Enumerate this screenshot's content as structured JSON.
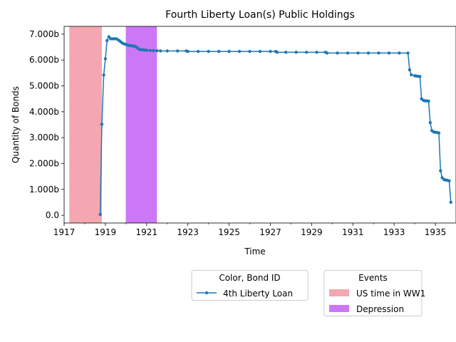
{
  "chart_data": {
    "type": "line",
    "title": "Fourth Liberty Loan(s) Public Holdings",
    "xlabel": "Time",
    "ylabel": "Quantity of Bonds",
    "xlim": [
      1917.0,
      1936.0
    ],
    "ylim": [
      -0.3,
      7.3
    ],
    "x_ticks": [
      1917,
      1919,
      1921,
      1923,
      1925,
      1927,
      1929,
      1931,
      1933,
      1935
    ],
    "x_tick_labels": [
      "1917",
      "1919",
      "1921",
      "1923",
      "1925",
      "1927",
      "1929",
      "1931",
      "1933",
      "1935"
    ],
    "y_ticks": [
      0,
      1,
      2,
      3,
      4,
      5,
      6,
      7
    ],
    "y_tick_labels": [
      "0.0",
      "1.000b",
      "2.000b",
      "3.000b",
      "4.000b",
      "5.000b",
      "6.000b",
      "7.000b"
    ],
    "series": [
      {
        "name": "4th Liberty Loan",
        "color": "#1f77b4",
        "marker": "dot",
        "points": [
          [
            1918.75,
            0.03
          ],
          [
            1918.83,
            3.52
          ],
          [
            1918.92,
            5.42
          ],
          [
            1919.0,
            6.05
          ],
          [
            1919.08,
            6.75
          ],
          [
            1919.17,
            6.9
          ],
          [
            1919.25,
            6.82
          ],
          [
            1919.33,
            6.82
          ],
          [
            1919.42,
            6.82
          ],
          [
            1919.5,
            6.82
          ],
          [
            1919.58,
            6.8
          ],
          [
            1919.67,
            6.75
          ],
          [
            1919.75,
            6.7
          ],
          [
            1919.83,
            6.65
          ],
          [
            1919.92,
            6.62
          ],
          [
            1920.0,
            6.6
          ],
          [
            1920.08,
            6.58
          ],
          [
            1920.17,
            6.56
          ],
          [
            1920.25,
            6.55
          ],
          [
            1920.33,
            6.54
          ],
          [
            1920.42,
            6.53
          ],
          [
            1920.5,
            6.5
          ],
          [
            1920.58,
            6.45
          ],
          [
            1920.67,
            6.4
          ],
          [
            1920.75,
            6.4
          ],
          [
            1920.83,
            6.39
          ],
          [
            1920.92,
            6.38
          ],
          [
            1921.0,
            6.38
          ],
          [
            1921.17,
            6.37
          ],
          [
            1921.33,
            6.36
          ],
          [
            1921.5,
            6.36
          ],
          [
            1921.67,
            6.35
          ],
          [
            1922.0,
            6.35
          ],
          [
            1922.5,
            6.35
          ],
          [
            1922.92,
            6.35
          ],
          [
            1923.0,
            6.33
          ],
          [
            1923.5,
            6.33
          ],
          [
            1924.0,
            6.33
          ],
          [
            1924.5,
            6.33
          ],
          [
            1925.0,
            6.33
          ],
          [
            1925.5,
            6.33
          ],
          [
            1926.0,
            6.33
          ],
          [
            1926.5,
            6.33
          ],
          [
            1927.0,
            6.33
          ],
          [
            1927.25,
            6.33
          ],
          [
            1927.33,
            6.3
          ],
          [
            1927.75,
            6.3
          ],
          [
            1928.25,
            6.3
          ],
          [
            1928.75,
            6.3
          ],
          [
            1929.25,
            6.3
          ],
          [
            1929.67,
            6.3
          ],
          [
            1929.75,
            6.27
          ],
          [
            1930.25,
            6.27
          ],
          [
            1930.75,
            6.27
          ],
          [
            1931.25,
            6.27
          ],
          [
            1931.75,
            6.27
          ],
          [
            1932.25,
            6.27
          ],
          [
            1932.75,
            6.27
          ],
          [
            1933.25,
            6.27
          ],
          [
            1933.67,
            6.27
          ],
          [
            1933.75,
            5.62
          ],
          [
            1933.83,
            5.43
          ],
          [
            1934.0,
            5.39
          ],
          [
            1934.08,
            5.38
          ],
          [
            1934.17,
            5.37
          ],
          [
            1934.25,
            5.36
          ],
          [
            1934.33,
            4.5
          ],
          [
            1934.42,
            4.44
          ],
          [
            1934.5,
            4.42
          ],
          [
            1934.58,
            4.42
          ],
          [
            1934.67,
            4.41
          ],
          [
            1934.75,
            3.58
          ],
          [
            1934.83,
            3.27
          ],
          [
            1934.92,
            3.22
          ],
          [
            1935.0,
            3.21
          ],
          [
            1935.08,
            3.2
          ],
          [
            1935.17,
            3.18
          ],
          [
            1935.25,
            1.72
          ],
          [
            1935.33,
            1.45
          ],
          [
            1935.42,
            1.38
          ],
          [
            1935.5,
            1.36
          ],
          [
            1935.58,
            1.35
          ],
          [
            1935.67,
            1.33
          ],
          [
            1935.75,
            0.5
          ]
        ]
      }
    ],
    "events": [
      {
        "name": "US time in WW1",
        "start": 1917.25,
        "end": 1918.83,
        "color": "#f4a7b0"
      },
      {
        "name": "Depression",
        "start": 1919.99,
        "end": 1921.5,
        "color": "#cc77f5"
      }
    ],
    "legend_series_title": "Color, Bond ID",
    "legend_events_title": "Events",
    "legend_placement": "below-center",
    "grid": false
  }
}
